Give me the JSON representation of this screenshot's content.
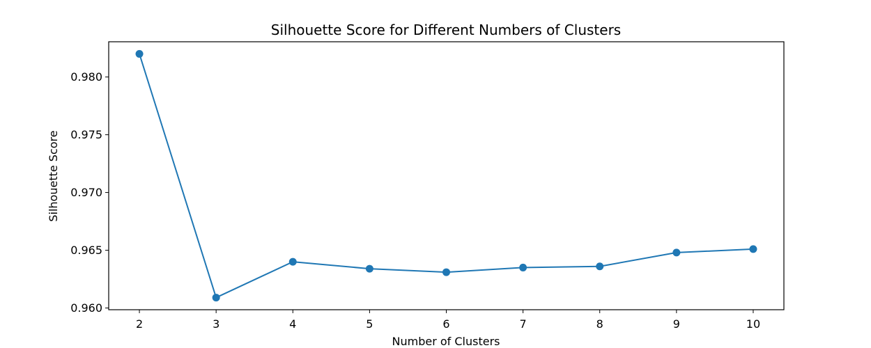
{
  "chart_data": {
    "type": "line",
    "title": "Silhouette Score for Different Numbers of Clusters",
    "xlabel": "Number of Clusters",
    "ylabel": "Silhouette Score",
    "x": [
      2,
      3,
      4,
      5,
      6,
      7,
      8,
      9,
      10
    ],
    "series": [
      {
        "values": [
          0.982,
          0.9609,
          0.964,
          0.9634,
          0.9631,
          0.9635,
          0.9636,
          0.9648,
          0.9651
        ],
        "marker": "circle",
        "color": "#1f77b4"
      }
    ],
    "xticks": [
      "2",
      "3",
      "4",
      "5",
      "6",
      "7",
      "8",
      "9",
      "10"
    ],
    "yticks": [
      "0.960",
      "0.965",
      "0.970",
      "0.975",
      "0.980"
    ],
    "ytick_values": [
      0.96,
      0.965,
      0.97,
      0.975,
      0.98
    ],
    "xlim": [
      1.6,
      10.4
    ],
    "ylim": [
      0.95985,
      0.98305
    ],
    "grid": false,
    "legend": false
  }
}
